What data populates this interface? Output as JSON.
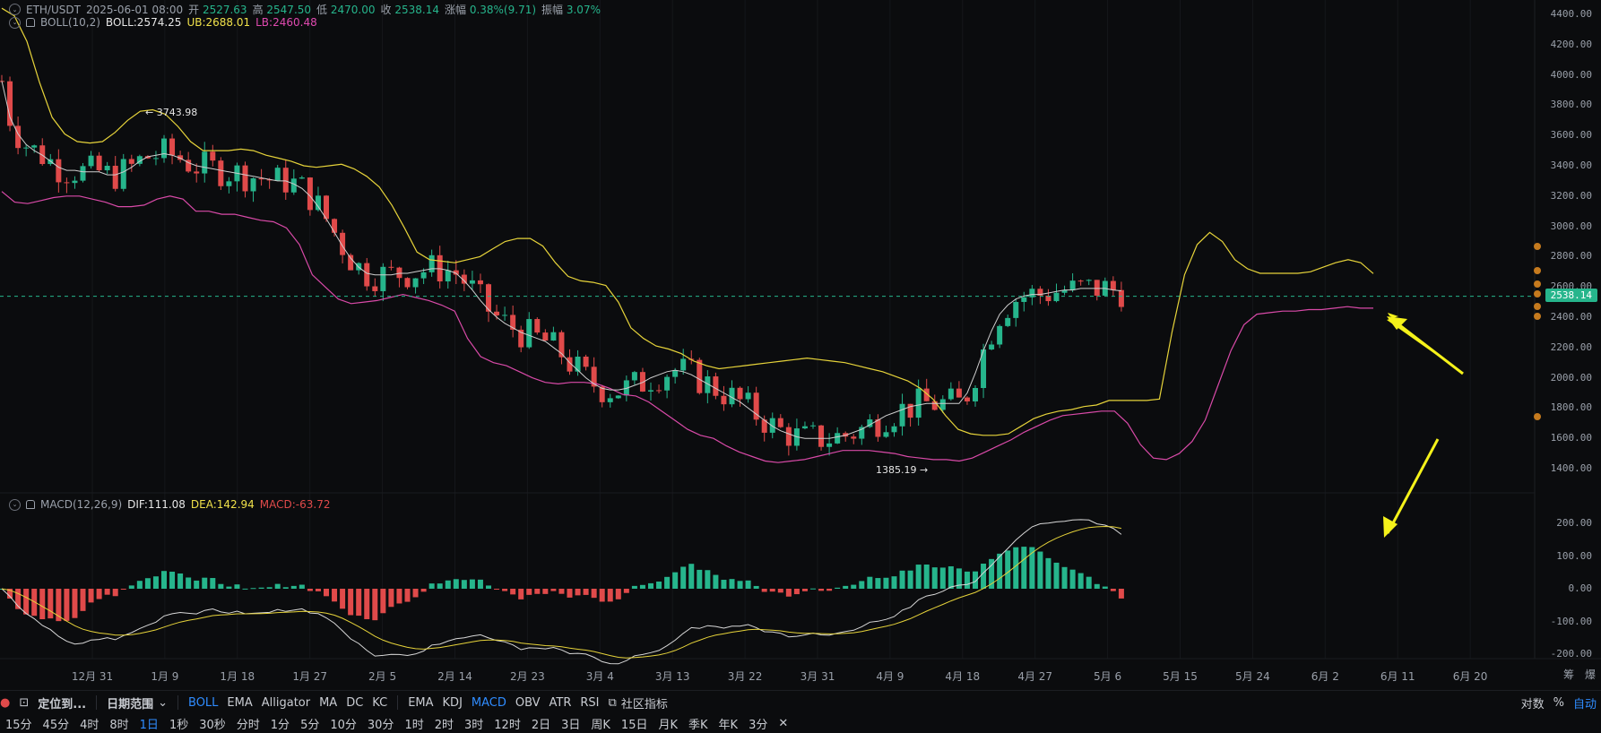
{
  "header": {
    "symbol": "ETH/USDT",
    "datetime": "2025-06-01 08:00",
    "open_label": "开",
    "open": "2527.63",
    "high_label": "高",
    "high": "2547.50",
    "low_label": "低",
    "low": "2470.00",
    "close_label": "收",
    "close": "2538.14",
    "change_label": "涨幅",
    "change": "0.38%(9.71)",
    "amp_label": "振幅",
    "amp": "3.07%"
  },
  "boll_legend": {
    "name": "BOLL(10,2)",
    "mid": "BOLL:2574.25",
    "ub": "UB:2688.01",
    "lb": "LB:2460.48"
  },
  "macd_legend": {
    "name": "MACD(12,26,9)",
    "dif": "DIF:111.08",
    "dea": "DEA:142.94",
    "macd": "MACD:-63.72"
  },
  "annotations": {
    "high": "← 3743.98",
    "low": "1385.19 →"
  },
  "current_price": "2538.14",
  "price_axis": [
    "4400.00",
    "4200.00",
    "4000.00",
    "3800.00",
    "3600.00",
    "3400.00",
    "3200.00",
    "3000.00",
    "2800.00",
    "2600.00",
    "2400.00",
    "2200.00",
    "2000.00",
    "1800.00",
    "1600.00",
    "1400.00"
  ],
  "macd_axis": [
    "200.00",
    "100.00",
    "0.00",
    "-100.00",
    "-200.00"
  ],
  "date_axis": [
    "12月 31",
    "1月 9",
    "1月 18",
    "1月 27",
    "2月 5",
    "2月 14",
    "2月 23",
    "3月 4",
    "3月 13",
    "3月 22",
    "3月 31",
    "4月 9",
    "4月 18",
    "4月 27",
    "5月 6",
    "5月 15",
    "5月 24",
    "6月 2",
    "6月 11",
    "6月 20"
  ],
  "right_corner": [
    "筹",
    "爆"
  ],
  "toolbar": {
    "locate": "定位到...",
    "date_range": "日期范围",
    "main_indicators": [
      "BOLL",
      "EMA",
      "Alligator",
      "MA",
      "DC",
      "KC"
    ],
    "sub_indicators": [
      "EMA",
      "KDJ",
      "MACD",
      "OBV",
      "ATR",
      "RSI"
    ],
    "community": "社区指标",
    "scale": [
      "对数",
      "%",
      "自动"
    ]
  },
  "timeframes": [
    "15分",
    "45分",
    "4时",
    "8时",
    "1日",
    "1秒",
    "30秒",
    "分时",
    "1分",
    "5分",
    "10分",
    "30分",
    "1时",
    "2时",
    "3时",
    "12时",
    "2日",
    "3日",
    "周K",
    "15日",
    "月K",
    "季K",
    "年K",
    "3分"
  ],
  "colors": {
    "up": "#26b58c",
    "down": "#e04a4a",
    "boll_mid": "#cfcfcf",
    "boll_ub": "#e6d33a",
    "boll_lb": "#d94aa8",
    "dif": "#d8d8d8",
    "dea": "#e6d33a",
    "accent": "#2f8cff",
    "arrow": "#f5f21a"
  },
  "chart_data": {
    "type": "candlestick",
    "x_start": "2024-12-20",
    "interval": "1d",
    "price_range": [
      1300,
      4450
    ],
    "macd_range": [
      -220,
      230
    ],
    "boll": [
      3960,
      3720,
      3610,
      3540,
      3500,
      3470,
      3430,
      3390,
      3370,
      3370,
      3360,
      3360,
      3360,
      3340,
      3340,
      3360,
      3390,
      3430,
      3460,
      3470,
      3480,
      3470,
      3450,
      3420,
      3400,
      3390,
      3380,
      3370,
      3360,
      3350,
      3340,
      3330,
      3320,
      3310,
      3300,
      3300,
      3280,
      3250,
      3200,
      3130,
      3050,
      2960,
      2870,
      2790,
      2730,
      2690,
      2680,
      2680,
      2680,
      2690,
      2690,
      2700,
      2710,
      2720,
      2720,
      2710,
      2690,
      2640,
      2580,
      2510,
      2450,
      2400,
      2360,
      2330,
      2300,
      2280,
      2260,
      2240,
      2200,
      2160,
      2100,
      2050,
      2000,
      1960,
      1930,
      1920,
      1920,
      1930,
      1950,
      1970,
      2000,
      2020,
      2040,
      2050,
      2040,
      2020,
      1990,
      1960,
      1930,
      1900,
      1870,
      1840,
      1800,
      1760,
      1720,
      1680,
      1650,
      1630,
      1610,
      1600,
      1600,
      1600,
      1600,
      1610,
      1620,
      1640,
      1660,
      1690,
      1720,
      1750,
      1770,
      1790,
      1810,
      1820,
      1830,
      1830,
      1830,
      1830,
      1830,
      1900,
      2030,
      2180,
      2310,
      2420,
      2480,
      2520,
      2540,
      2550,
      2550,
      2560,
      2570,
      2580,
      2580,
      2590,
      2590,
      2590,
      2590,
      2580,
      2574
    ],
    "ub": [
      4440,
      4390,
      4220,
      3950,
      3720,
      3610,
      3560,
      3550,
      3560,
      3620,
      3700,
      3760,
      3770,
      3740,
      3660,
      3560,
      3500,
      3500,
      3500,
      3510,
      3500,
      3470,
      3450,
      3430,
      3400,
      3390,
      3400,
      3410,
      3380,
      3330,
      3260,
      3140,
      2990,
      2830,
      2780,
      2770,
      2760,
      2780,
      2800,
      2850,
      2900,
      2920,
      2920,
      2870,
      2760,
      2670,
      2640,
      2630,
      2610,
      2500,
      2330,
      2260,
      2210,
      2190,
      2160,
      2110,
      2080,
      2060,
      2070,
      2080,
      2090,
      2100,
      2110,
      2120,
      2130,
      2120,
      2110,
      2100,
      2080,
      2060,
      2040,
      2010,
      1980,
      1930,
      1860,
      1750,
      1660,
      1630,
      1620,
      1620,
      1630,
      1680,
      1730,
      1760,
      1780,
      1790,
      1810,
      1820,
      1850,
      1850,
      1850,
      1850,
      1860,
      2300,
      2680,
      2880,
      2960,
      2900,
      2780,
      2720,
      2690,
      2690,
      2690,
      2690,
      2700,
      2730,
      2760,
      2780,
      2760,
      2688
    ],
    "lb": [
      3230,
      3160,
      3150,
      3170,
      3190,
      3200,
      3200,
      3180,
      3160,
      3130,
      3130,
      3140,
      3180,
      3200,
      3180,
      3100,
      3100,
      3080,
      3080,
      3060,
      3040,
      3030,
      2990,
      2880,
      2680,
      2600,
      2520,
      2490,
      2500,
      2510,
      2530,
      2550,
      2530,
      2510,
      2480,
      2440,
      2260,
      2140,
      2100,
      2080,
      2040,
      2000,
      1970,
      1960,
      1970,
      1970,
      1960,
      1930,
      1890,
      1880,
      1840,
      1780,
      1720,
      1660,
      1620,
      1600,
      1550,
      1510,
      1480,
      1450,
      1440,
      1450,
      1460,
      1480,
      1500,
      1520,
      1520,
      1520,
      1510,
      1500,
      1480,
      1470,
      1460,
      1460,
      1450,
      1470,
      1510,
      1550,
      1590,
      1640,
      1680,
      1720,
      1750,
      1760,
      1770,
      1780,
      1780,
      1700,
      1560,
      1470,
      1460,
      1500,
      1580,
      1720,
      1950,
      2180,
      2350,
      2420,
      2430,
      2440,
      2440,
      2450,
      2450,
      2460,
      2470,
      2460,
      2460
    ]
  }
}
